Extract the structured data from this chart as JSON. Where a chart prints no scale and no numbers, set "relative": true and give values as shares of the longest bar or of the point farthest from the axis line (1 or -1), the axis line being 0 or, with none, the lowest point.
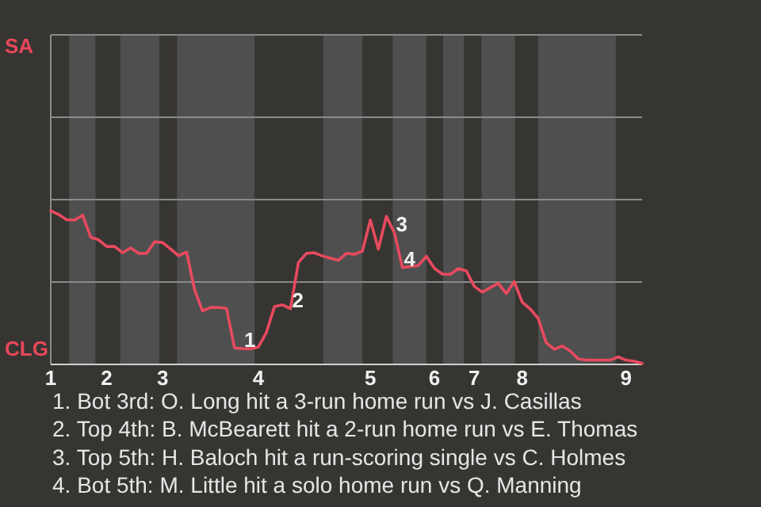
{
  "chart_data": {
    "type": "line",
    "relative": true,
    "categories": [
      "1",
      null,
      null,
      null,
      null,
      null,
      null,
      "2",
      null,
      null,
      null,
      null,
      null,
      null,
      "3",
      null,
      null,
      null,
      null,
      null,
      null,
      null,
      null,
      null,
      null,
      null,
      "4",
      null,
      null,
      null,
      null,
      null,
      null,
      null,
      null,
      null,
      null,
      null,
      null,
      null,
      "5",
      null,
      null,
      null,
      null,
      null,
      null,
      null,
      "6",
      null,
      null,
      null,
      null,
      "7",
      null,
      null,
      null,
      null,
      null,
      "8",
      null,
      null,
      null,
      null,
      null,
      null,
      null,
      null,
      null,
      null,
      null,
      null,
      "9",
      null,
      null
    ],
    "marker": "none",
    "line_style": "solid",
    "series": [
      {
        "color": "#e84a5f",
        "values": [
          1,
          0.976,
          0.942,
          0.94,
          0.972,
          0.828,
          0.811,
          0.768,
          0.768,
          0.727,
          0.758,
          0.723,
          0.723,
          0.798,
          0.794,
          0.751,
          0.708,
          0.732,
          0.485,
          0.348,
          0.371,
          0.371,
          0.365,
          0.107,
          0.103,
          0.101,
          0.114,
          0.21,
          0.376,
          0.388,
          0.363,
          0.665,
          0.723,
          0.727,
          0.706,
          0.691,
          0.678,
          0.723,
          0.717,
          0.738,
          0.94,
          0.751,
          0.964,
          0.858,
          0.631,
          0.637,
          0.644,
          0.704,
          0.627,
          0.588,
          0.586,
          0.624,
          0.609,
          0.509,
          0.47,
          0.5,
          0.528,
          0.461,
          0.539,
          0.406,
          0.361,
          0.3,
          0.142,
          0.099,
          0.12,
          0.088,
          0.036,
          0.028,
          0.028,
          0.028,
          0.028,
          0.049,
          0.028,
          0.021,
          0.006
        ]
      }
    ],
    "ref_lines": [
      {
        "axis": "y",
        "value": 0.536,
        "color": "#8a8a8a"
      },
      {
        "axis": "y",
        "value": 1.073,
        "color": "#8a8a8a"
      },
      {
        "axis": "y",
        "value": 1.609,
        "color": "#8a8a8a"
      },
      {
        "axis": "y",
        "value": 2.146,
        "color": "#8a8a8a"
      }
    ],
    "annotations": [
      "SA",
      "CLG",
      {
        "text": "1",
        "y": 0.103
      },
      {
        "text": "2",
        "y": 0.363
      },
      {
        "text": "3",
        "y": 0.858
      },
      {
        "text": "4",
        "y": 0.631
      },
      "1. Bot 3rd: O. Long hit a 3-run home run vs J. Casillas",
      "2. Top 4th: B. McBearett hit a 2-run home run vs E. Thomas",
      "3. Top 5th: H. Baloch hit a run-scoring single vs C. Holmes",
      "4. Bot 5th: M. Little hit a solo home run vs Q. Manning"
    ]
  }
}
